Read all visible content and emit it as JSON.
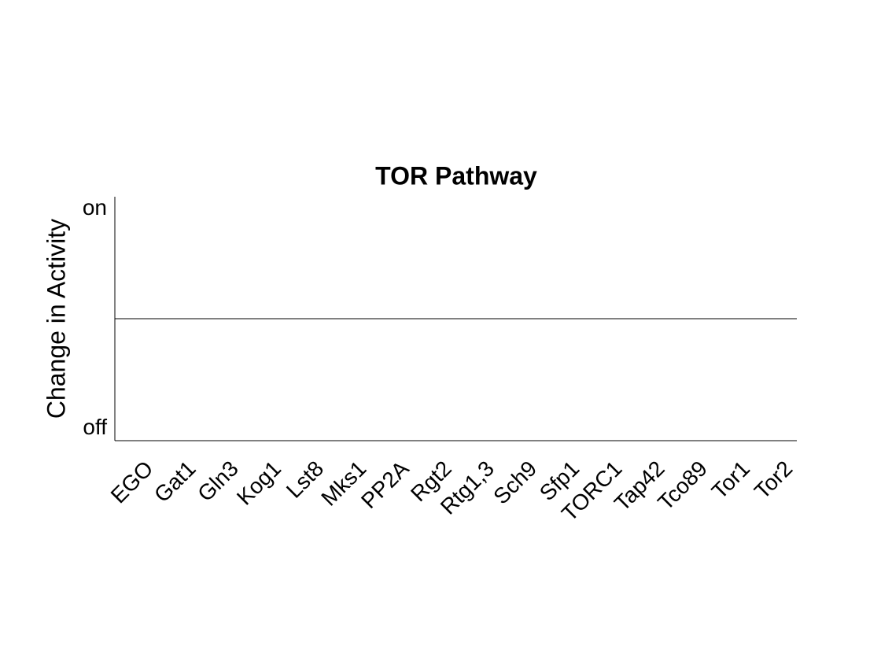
{
  "chart_data": {
    "type": "bar",
    "title": "TOR Pathway",
    "y_label": "Change in Activity",
    "categories": [
      "EGO",
      "Gat1",
      "Gln3",
      "Kog1",
      "Lst8",
      "Mks1",
      "PP2A",
      "Rgt2",
      "Rtg1,3",
      "Sch9",
      "Sfp1",
      "TORC1",
      "Tap42",
      "Tco89",
      "Tor1",
      "Tor2"
    ],
    "values": [
      0,
      0,
      0,
      0,
      0,
      0,
      0,
      0,
      0,
      0,
      0,
      0,
      0,
      0,
      0,
      0
    ],
    "color": "#1f77b4",
    "ylim": [
      -1,
      1
    ],
    "yticks": [
      {
        "value": -0.9,
        "label": "off"
      },
      {
        "value": 0.9,
        "label": "on"
      }
    ],
    "grid": false
  }
}
